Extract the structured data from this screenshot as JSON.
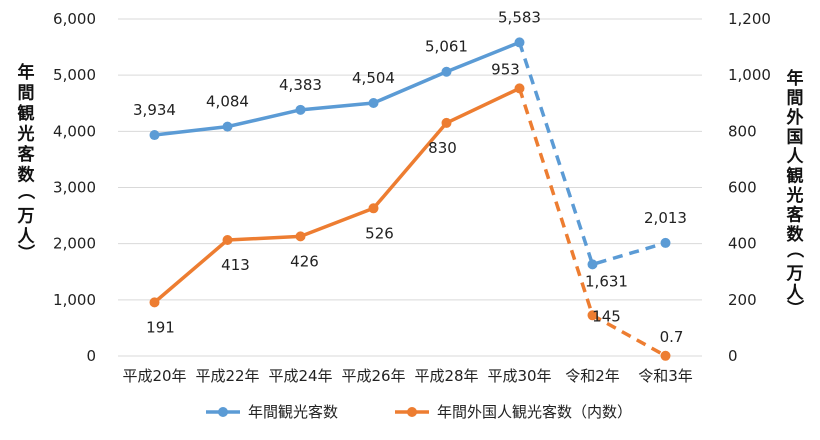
{
  "chart_data": {
    "type": "line",
    "categories": [
      "平成20年",
      "平成22年",
      "平成24年",
      "平成26年",
      "平成28年",
      "平成30年",
      "令和2年",
      "令和3年"
    ],
    "y_left": {
      "label": "年間観光客数（万人）",
      "ylim": [
        0,
        6000
      ],
      "ticks": [
        "0",
        "1,000",
        "2,000",
        "3,000",
        "4,000",
        "5,000",
        "6,000"
      ]
    },
    "y_right": {
      "label": "年間外国人観光客数（万人）",
      "ylim": [
        0,
        1200
      ],
      "ticks": [
        "0",
        "200",
        "400",
        "600",
        "800",
        "1,000",
        "1,200"
      ]
    },
    "series": [
      {
        "name": "年間観光客数",
        "axis": "left",
        "color": "#5B9BD5",
        "values": [
          3934,
          4084,
          4383,
          4504,
          5061,
          5583,
          1631,
          2013
        ],
        "labels": [
          "3,934",
          "4,084",
          "4,383",
          "4,504",
          "5,061",
          "5,583",
          "1,631",
          "2,013"
        ],
        "dashed_from_index": 5
      },
      {
        "name": "年間外国人観光客数（内数）",
        "axis": "right",
        "color": "#ED7D31",
        "values": [
          191,
          413,
          426,
          526,
          830,
          953,
          145,
          0.7
        ],
        "labels": [
          "191",
          "413",
          "426",
          "526",
          "830",
          "953",
          "145",
          "0.7"
        ],
        "dashed_from_index": 5
      }
    ],
    "grid": true,
    "legend_position": "bottom"
  }
}
